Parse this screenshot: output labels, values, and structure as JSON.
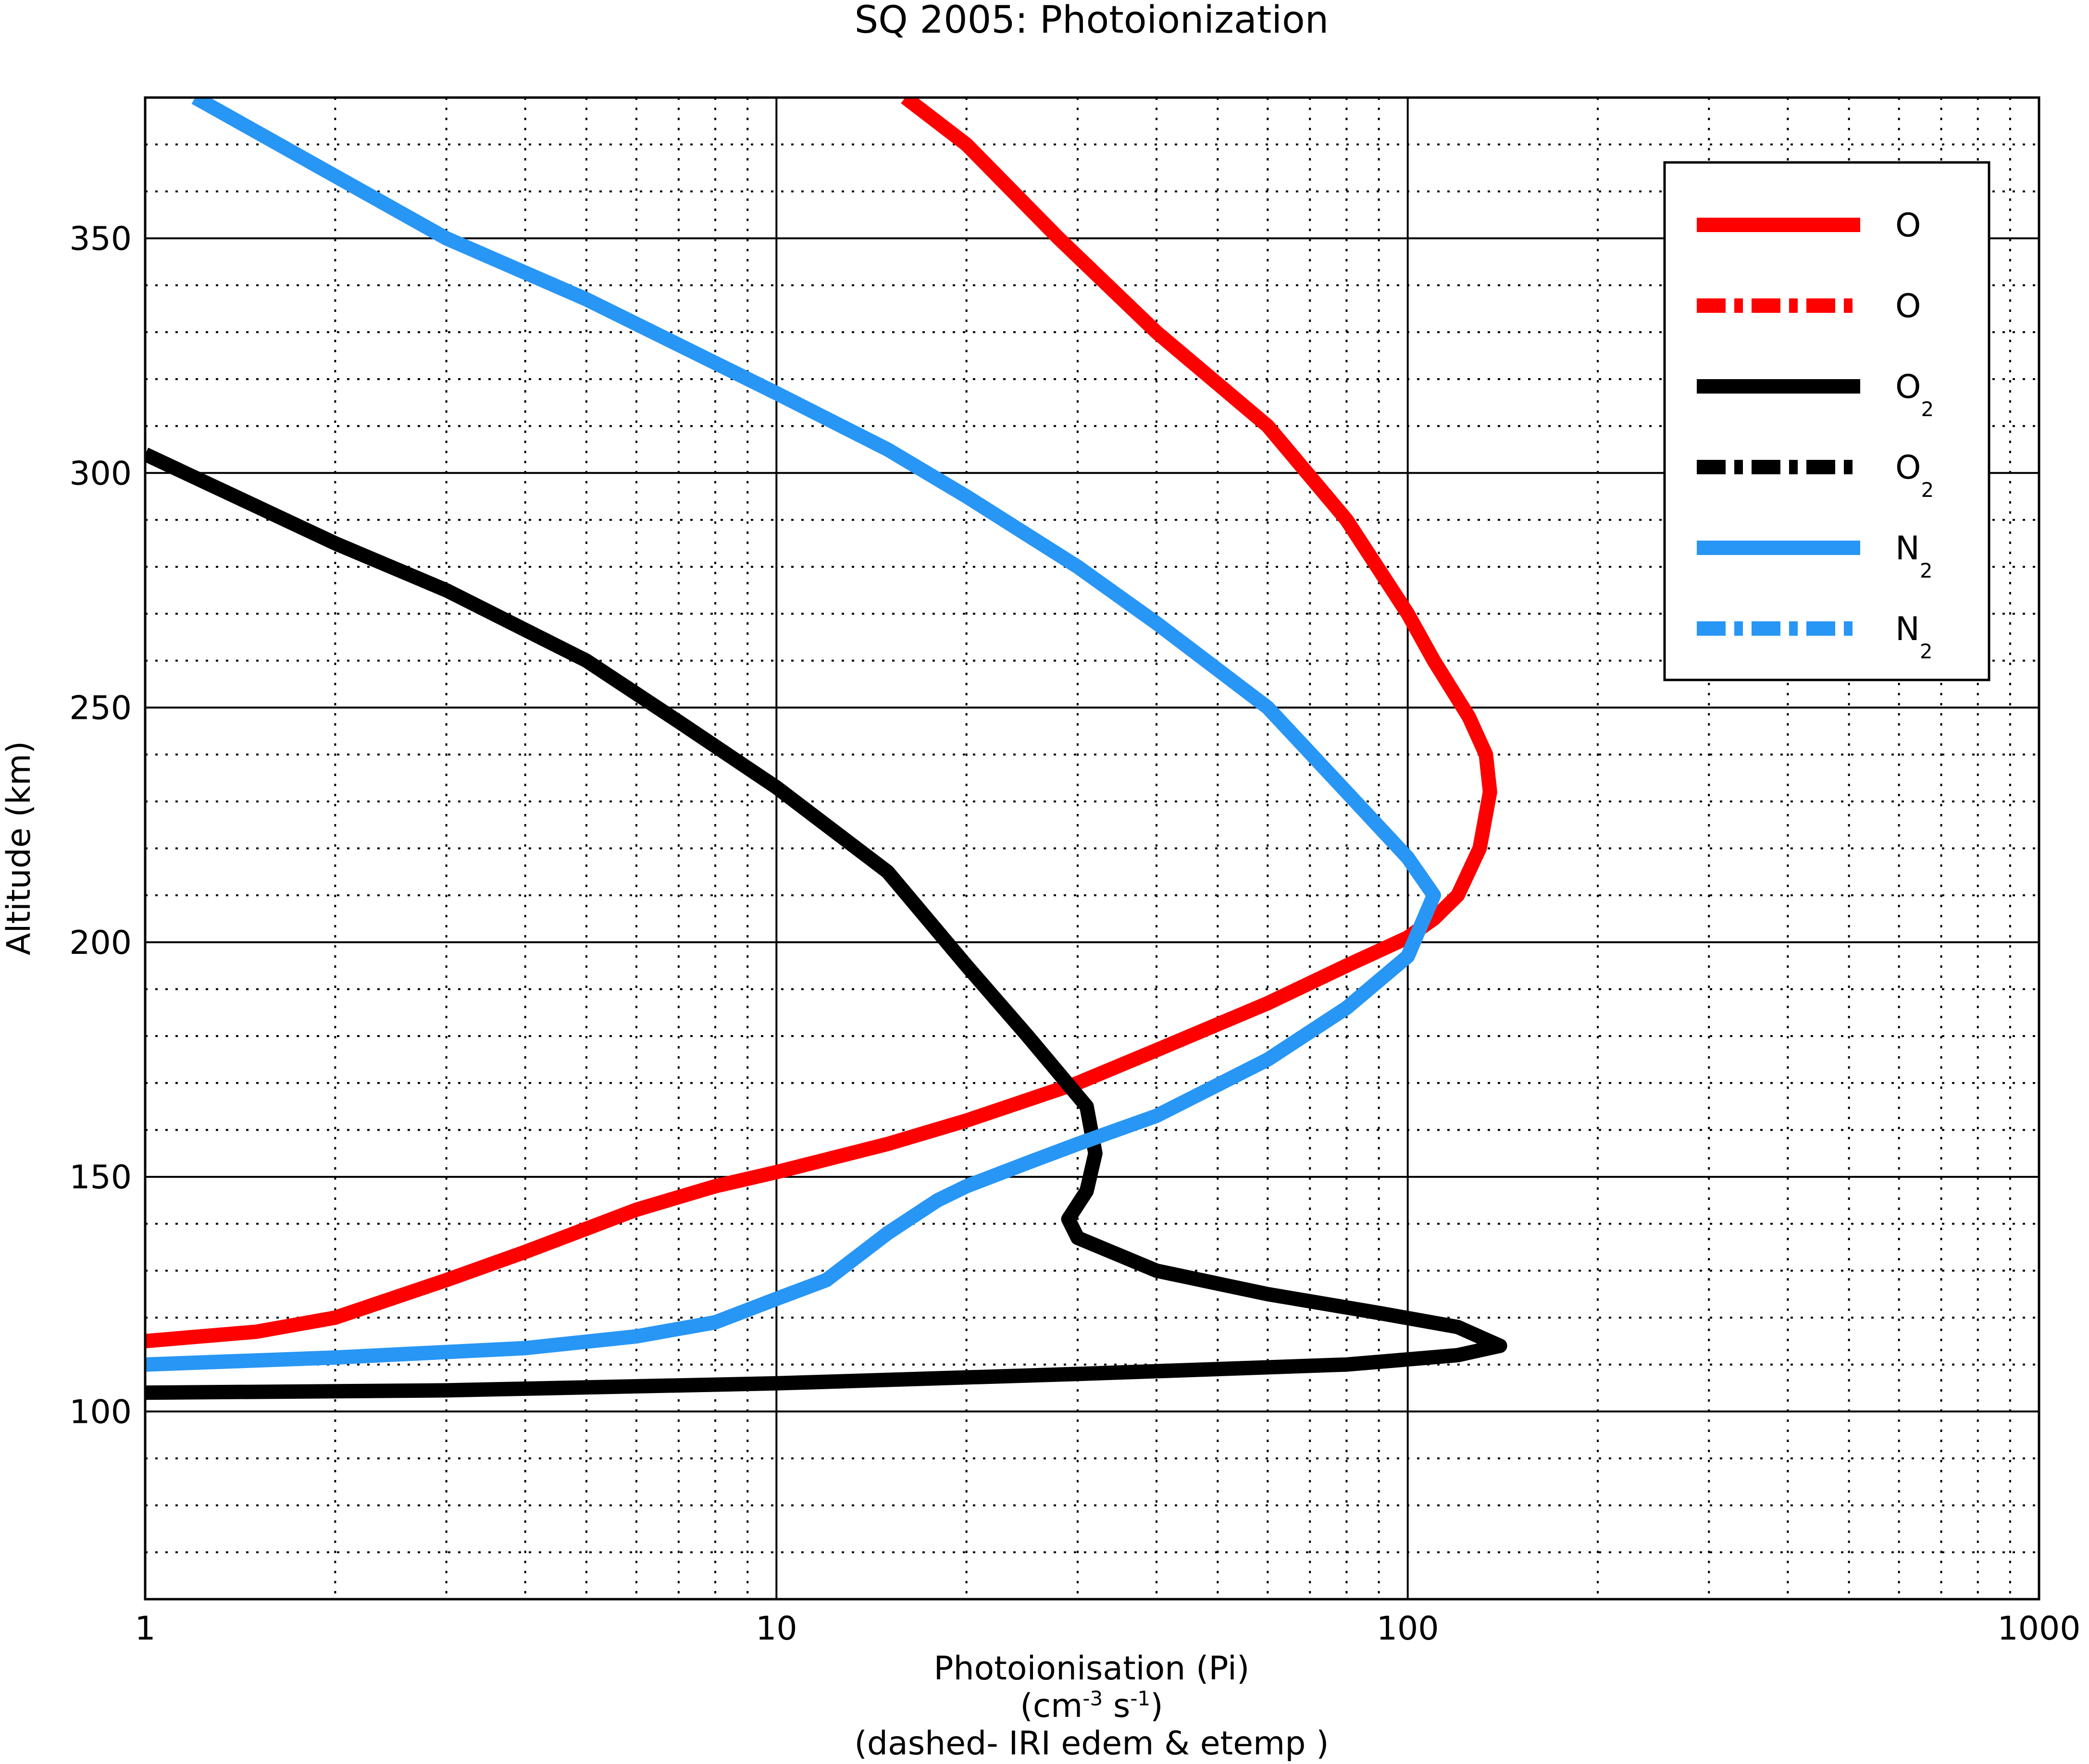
{
  "chart_data": {
    "type": "line",
    "title": "SQ 2005: Photoionization",
    "xlabel": "Photoionisation (Pi)",
    "xlabel_units": {
      "open": "(cm",
      "exp1": "-3",
      "mid": " s",
      "exp2": "-1",
      "close": ")"
    },
    "xlabel_note": "(dashed- IRI edem & etemp )",
    "ylabel": "Altitude (km)",
    "xscale": "log",
    "xlim": [
      1,
      1000
    ],
    "ylim": [
      60,
      380
    ],
    "xticks": [
      1,
      10,
      100,
      1000
    ],
    "xtick_labels": [
      "1",
      "10",
      "100",
      "1000"
    ],
    "yticks": [
      100,
      150,
      200,
      250,
      300,
      350
    ],
    "ytick_labels": [
      "100",
      "150",
      "200",
      "250",
      "300",
      "350"
    ],
    "grid": true,
    "legend_position": "top-right",
    "series": [
      {
        "key": "O_solid",
        "name": "O",
        "color": "#ff0000",
        "dash": "solid",
        "points": [
          [
            1,
            115
          ],
          [
            1.5,
            117
          ],
          [
            2,
            120
          ],
          [
            3,
            128
          ],
          [
            4,
            134
          ],
          [
            6,
            143
          ],
          [
            8,
            148
          ],
          [
            10,
            151
          ],
          [
            15,
            157
          ],
          [
            20,
            162
          ],
          [
            30,
            170
          ],
          [
            40,
            177
          ],
          [
            60,
            187
          ],
          [
            80,
            195
          ],
          [
            100,
            201
          ],
          [
            110,
            205
          ],
          [
            120,
            210
          ],
          [
            130,
            220
          ],
          [
            135,
            232
          ],
          [
            133,
            240
          ],
          [
            125,
            248
          ],
          [
            110,
            260
          ],
          [
            100,
            270
          ],
          [
            80,
            290
          ],
          [
            60,
            310
          ],
          [
            40,
            330
          ],
          [
            28,
            350
          ],
          [
            20,
            370
          ],
          [
            16,
            380
          ]
        ]
      },
      {
        "key": "O_dashed",
        "name": "O",
        "color": "#ff0000",
        "dash": "dashdot",
        "points": []
      },
      {
        "key": "O2_solid",
        "name": "O",
        "name_sub": "2",
        "color": "#000000",
        "dash": "solid",
        "points": [
          [
            1,
            104
          ],
          [
            3,
            104.5
          ],
          [
            10,
            106
          ],
          [
            30,
            108
          ],
          [
            80,
            110
          ],
          [
            120,
            112
          ],
          [
            140,
            114
          ],
          [
            120,
            118
          ],
          [
            90,
            121
          ],
          [
            60,
            125
          ],
          [
            40,
            130
          ],
          [
            30,
            137
          ],
          [
            29,
            141
          ],
          [
            31,
            147
          ],
          [
            32,
            155
          ],
          [
            31,
            165
          ],
          [
            25,
            180
          ],
          [
            20,
            195
          ],
          [
            15,
            215
          ],
          [
            10,
            233
          ],
          [
            7,
            247
          ],
          [
            5,
            260
          ],
          [
            3,
            275
          ],
          [
            2,
            285
          ],
          [
            1,
            304
          ]
        ]
      },
      {
        "key": "O2_dashed",
        "name": "O",
        "name_sub": "2",
        "color": "#000000",
        "dash": "dashdot",
        "points": []
      },
      {
        "key": "N2_solid",
        "name": "N",
        "name_sub": "2",
        "color": "#2896f5",
        "dash": "solid",
        "points": [
          [
            1,
            110
          ],
          [
            2,
            111.5
          ],
          [
            4,
            113.5
          ],
          [
            6,
            116
          ],
          [
            8,
            119
          ],
          [
            10,
            124
          ],
          [
            12,
            128
          ],
          [
            15,
            138
          ],
          [
            18,
            145
          ],
          [
            20,
            148
          ],
          [
            25,
            153
          ],
          [
            30,
            157
          ],
          [
            40,
            163
          ],
          [
            60,
            175
          ],
          [
            80,
            186
          ],
          [
            100,
            197
          ],
          [
            110,
            210
          ],
          [
            100,
            218
          ],
          [
            80,
            232
          ],
          [
            60,
            250
          ],
          [
            40,
            268
          ],
          [
            30,
            280
          ],
          [
            20,
            295
          ],
          [
            15,
            305
          ],
          [
            10,
            317
          ],
          [
            5,
            337
          ],
          [
            3,
            350
          ],
          [
            1.2,
            380
          ]
        ]
      },
      {
        "key": "N2_dashed",
        "name": "N",
        "name_sub": "2",
        "color": "#2896f5",
        "dash": "dashdot",
        "points": []
      }
    ]
  }
}
